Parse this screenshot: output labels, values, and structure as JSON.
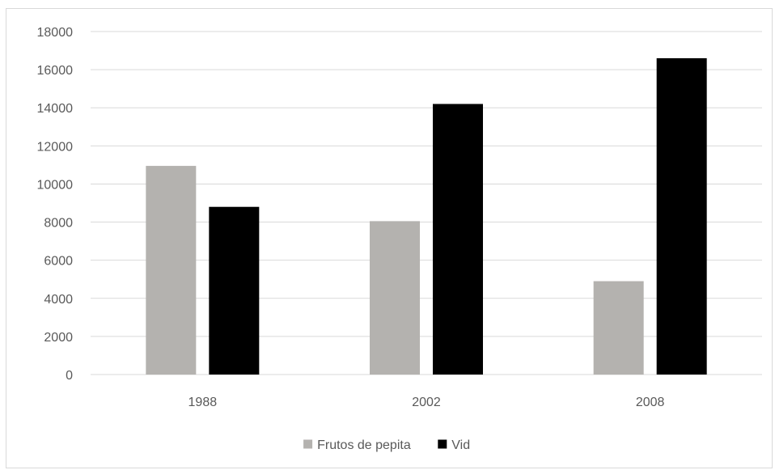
{
  "chart_data": {
    "type": "bar",
    "title": "",
    "xlabel": "",
    "ylabel": "",
    "categories": [
      "1988",
      "2002",
      "2008"
    ],
    "series": [
      {
        "name": "Frutos de pepita",
        "color": "#b4b2af",
        "values": [
          10950,
          8050,
          4900
        ]
      },
      {
        "name": "Vid",
        "color": "#000000",
        "values": [
          8800,
          14200,
          16600
        ]
      }
    ],
    "ylim": [
      0,
      18000
    ],
    "yticks": [
      0,
      2000,
      4000,
      6000,
      8000,
      10000,
      12000,
      14000,
      16000,
      18000
    ],
    "grid": true,
    "gridColor": "#d9d9d9",
    "legend": "bottom"
  }
}
